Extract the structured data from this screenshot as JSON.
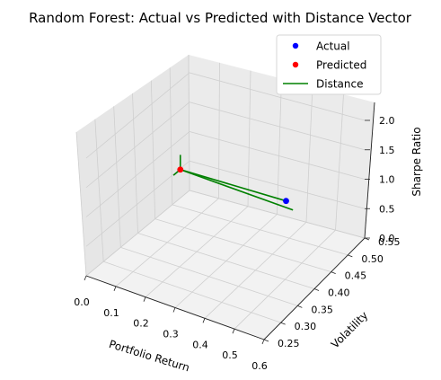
{
  "chart_data": {
    "type": "scatter3d",
    "title": "Random Forest: Actual vs Predicted with Distance Vector",
    "xlabel": "Portfolio Return",
    "ylabel": "Volatility",
    "zlabel": "Sharpe Ratio",
    "xlim": [
      0.0,
      0.6
    ],
    "ylim": [
      0.25,
      0.55
    ],
    "zlim": [
      0.0,
      2.0
    ],
    "xticks": [
      "0.0",
      "0.1",
      "0.2",
      "0.3",
      "0.4",
      "0.5",
      "0.6"
    ],
    "yticks": [
      "0.25",
      "0.30",
      "0.35",
      "0.40",
      "0.45",
      "0.50",
      "0.55"
    ],
    "zticks": [
      "0.0",
      "0.5",
      "1.0",
      "1.5",
      "2.0"
    ],
    "grid": true,
    "legend_position": "top-right",
    "series": [
      {
        "name": "Actual",
        "kind": "point",
        "color": "#0000ff",
        "x": 0.5,
        "y": 0.4,
        "z": 1.45
      },
      {
        "name": "Predicted",
        "kind": "point",
        "color": "#ff0000",
        "x": 0.12,
        "y": 0.42,
        "z": 1.2
      },
      {
        "name": "Distance",
        "kind": "vector",
        "color": "#008000",
        "from": [
          0.12,
          0.42,
          1.2
        ],
        "to": [
          0.5,
          0.4,
          1.45
        ],
        "components": [
          [
            0.5,
            0.42,
            1.2
          ],
          [
            0.12,
            0.4,
            1.2
          ],
          [
            0.12,
            0.42,
            1.45
          ]
        ]
      }
    ]
  }
}
